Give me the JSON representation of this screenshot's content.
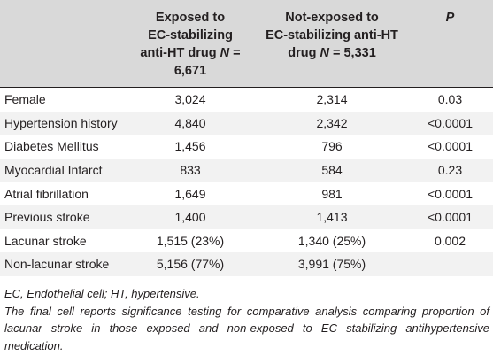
{
  "header": {
    "col1_lines": [
      "",
      ""
    ],
    "col2_line1": "Exposed to",
    "col2_line2": "EC-stabilizing",
    "col2_line3_pre": "anti-HT drug ",
    "col2_line3_n": "N",
    "col2_line3_post": " = 6,671",
    "col3_line1": "Not-exposed to",
    "col3_line2": "EC-stabilizing anti-HT",
    "col3_line3_pre": "drug ",
    "col3_line3_n": "N",
    "col3_line3_post": " = 5,331",
    "col4": "P"
  },
  "rows": [
    {
      "label": "Female",
      "exposed": "3,024",
      "not_exposed": "2,314",
      "p": "0.03"
    },
    {
      "label": "Hypertension history",
      "exposed": "4,840",
      "not_exposed": "2,342",
      "p": "<0.0001"
    },
    {
      "label": "Diabetes Mellitus",
      "exposed": "1,456",
      "not_exposed": "796",
      "p": "<0.0001"
    },
    {
      "label": "Myocardial Infarct",
      "exposed": "833",
      "not_exposed": "584",
      "p": "0.23"
    },
    {
      "label": "Atrial fibrillation",
      "exposed": "1,649",
      "not_exposed": "981",
      "p": "<0.0001"
    },
    {
      "label": "Previous stroke",
      "exposed": "1,400",
      "not_exposed": "1,413",
      "p": "<0.0001"
    },
    {
      "label": "Lacunar stroke",
      "exposed": "1,515 (23%)",
      "not_exposed": "1,340 (25%)",
      "p": "0.002"
    },
    {
      "label": "Non-lacunar stroke",
      "exposed": "5,156 (77%)",
      "not_exposed": "3,991 (75%)",
      "p": ""
    }
  ],
  "footnotes": [
    "EC, Endothelial cell; HT, hypertensive.",
    "The final cell reports significance testing for comparative analysis comparing proportion of lacunar stroke in those exposed and non-exposed to EC stabilizing antihypertensive medication."
  ]
}
